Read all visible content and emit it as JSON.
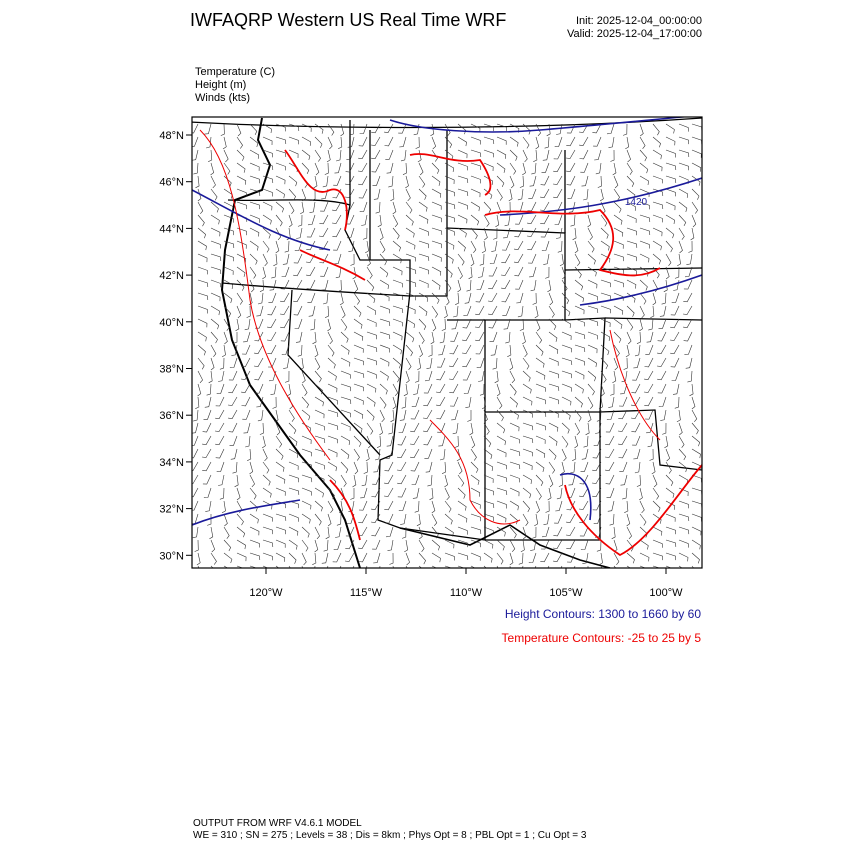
{
  "header": {
    "title": "IWFAQRP Western US Real Time WRF",
    "init": "Init: 2025-12-04_00:00:00",
    "valid": "Valid: 2025-12-04_17:00:00"
  },
  "fields": [
    "Temperature   (C)",
    "Height   (m)",
    "Winds   (kts)"
  ],
  "map": {
    "lat_labels": [
      "48°N",
      "46°N",
      "44°N",
      "42°N",
      "40°N",
      "38°N",
      "36°N",
      "34°N",
      "32°N",
      "30°N"
    ],
    "lon_labels": [
      "120°W",
      "115°W",
      "110°W",
      "105°W",
      "100°W"
    ],
    "contour_label": "1420"
  },
  "contour_info": {
    "height": "Height Contours: 1300 to 1660 by 60",
    "temperature": "Temperature Contours: -25 to 25 by 5"
  },
  "footer": {
    "line1": "OUTPUT FROM WRF V4.6.1 MODEL",
    "line2": "WE = 310 ; SN = 275 ; Levels = 38 ; Dis = 8km ; Phys Opt = 8 ; PBL Opt = 1 ; Cu Opt = 3"
  }
}
